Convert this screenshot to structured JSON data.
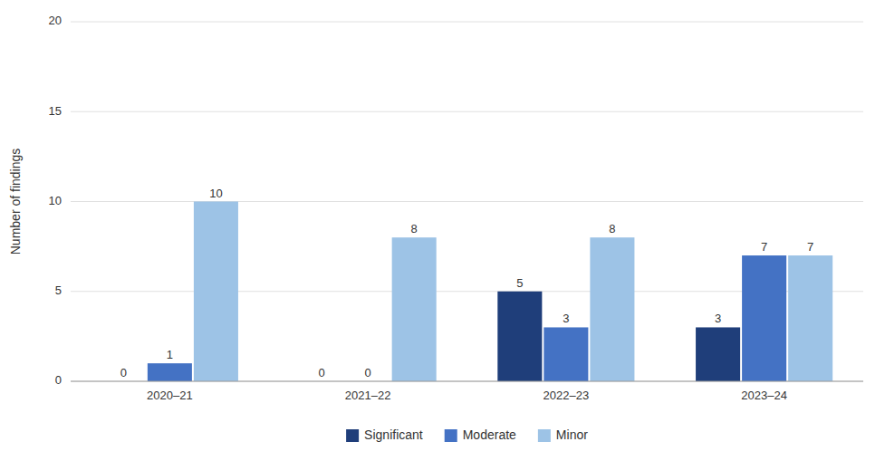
{
  "chart_data": {
    "type": "bar",
    "categories": [
      "2020–21",
      "2021–22",
      "2022–23",
      "2023–24"
    ],
    "series": [
      {
        "name": "Significant",
        "color": "#1f3e7a",
        "values": [
          0,
          0,
          5,
          3
        ]
      },
      {
        "name": "Moderate",
        "color": "#4472c4",
        "values": [
          1,
          0,
          3,
          7
        ]
      },
      {
        "name": "Minor",
        "color": "#9dc3e6",
        "values": [
          10,
          8,
          8,
          7
        ]
      }
    ],
    "ylabel": "Number of findings",
    "ylim": [
      0,
      20
    ],
    "yticks": [
      0,
      5,
      10,
      15,
      20
    ],
    "grid": true,
    "legend": "bottom",
    "data_labels": true
  }
}
